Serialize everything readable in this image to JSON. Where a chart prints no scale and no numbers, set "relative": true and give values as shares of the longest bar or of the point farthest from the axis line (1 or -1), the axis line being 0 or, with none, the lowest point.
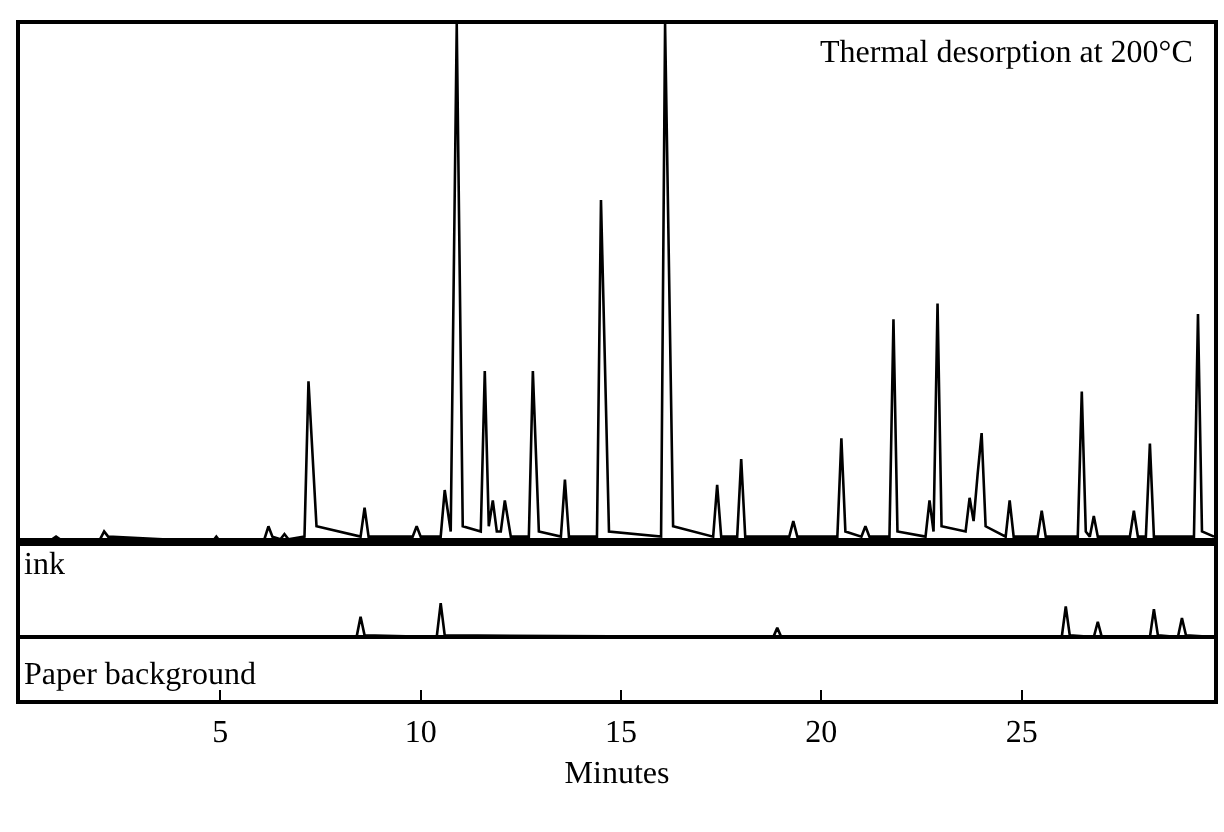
{
  "chart_data": [
    {
      "type": "line",
      "relative": true,
      "color": "#000000",
      "xlim": [
        0,
        29.8
      ],
      "tick_labels": false,
      "annotations": [
        "Thermal desorption at 200°C"
      ],
      "x": [
        0,
        0.8,
        0.9,
        1.0,
        2.0,
        2.1,
        2.2,
        4.8,
        4.9,
        5.0,
        6.1,
        6.2,
        6.3,
        6.5,
        6.6,
        6.7,
        7.1,
        7.2,
        7.4,
        8.5,
        8.6,
        8.7,
        9.8,
        9.9,
        10.0,
        10.5,
        10.6,
        10.75,
        10.9,
        11.05,
        11.5,
        11.6,
        11.7,
        11.8,
        11.9,
        12.0,
        12.1,
        12.25,
        12.7,
        12.8,
        12.95,
        13.5,
        13.6,
        13.7,
        14.4,
        14.5,
        14.7,
        16.0,
        16.1,
        16.3,
        17.3,
        17.4,
        17.5,
        17.9,
        18.0,
        18.1,
        19.2,
        19.3,
        19.4,
        20.4,
        20.5,
        20.6,
        21.0,
        21.1,
        21.2,
        21.7,
        21.8,
        21.9,
        22.6,
        22.7,
        22.8,
        22.9,
        23.0,
        23.6,
        23.7,
        23.8,
        23.9,
        24.0,
        24.1,
        24.6,
        24.7,
        24.8,
        25.4,
        25.5,
        25.6,
        26.4,
        26.5,
        26.6,
        26.7,
        26.8,
        26.9,
        27.7,
        27.8,
        27.9,
        28.1,
        28.2,
        28.3,
        29.3,
        29.4,
        29.5,
        29.8
      ],
      "values": [
        0,
        0.005,
        0.01,
        0.005,
        0.005,
        0.02,
        0.01,
        0,
        0.01,
        0,
        0.005,
        0.03,
        0.01,
        0.005,
        0.015,
        0.005,
        0.01,
        0.31,
        0.03,
        0.01,
        0.066,
        0.01,
        0.01,
        0.03,
        0.01,
        0.01,
        0.1,
        0.02,
        1,
        0.03,
        0.02,
        0.33,
        0.03,
        0.08,
        0.02,
        0.02,
        0.08,
        0.01,
        0.01,
        0.33,
        0.02,
        0.01,
        0.12,
        0.01,
        0.01,
        0.66,
        0.02,
        0.01,
        1,
        0.03,
        0.01,
        0.11,
        0.01,
        0.01,
        0.16,
        0.01,
        0.01,
        0.04,
        0.01,
        0.01,
        0.2,
        0.02,
        0.01,
        0.03,
        0.01,
        0.01,
        0.43,
        0.02,
        0.01,
        0.08,
        0.02,
        0.46,
        0.03,
        0.02,
        0.085,
        0.04,
        0.13,
        0.21,
        0.03,
        0.01,
        0.08,
        0.01,
        0.01,
        0.06,
        0.01,
        0.01,
        0.29,
        0.02,
        0.01,
        0.05,
        0.01,
        0.01,
        0.06,
        0.01,
        0.01,
        0.19,
        0.01,
        0.01,
        0.44,
        0.02,
        0.01
      ]
    },
    {
      "type": "line",
      "relative": true,
      "color": "#000000",
      "xlim": [
        0,
        29.8
      ],
      "xticks": [
        5,
        10,
        15,
        20,
        25
      ],
      "tick_labels": "x",
      "xlabel": "Minutes",
      "annotations": [
        "ink",
        "Paper background"
      ],
      "x": [
        0,
        8.4,
        8.5,
        8.6,
        10.4,
        10.5,
        10.6,
        18.8,
        18.9,
        19.0,
        26.0,
        26.1,
        26.2,
        26.8,
        26.9,
        27.0,
        28.2,
        28.3,
        28.4,
        28.9,
        29.0,
        29.1,
        29.8
      ],
      "values": [
        0,
        0,
        0.6,
        0.05,
        0,
        1,
        0.05,
        0,
        0.27,
        0,
        0,
        0.9,
        0.05,
        0,
        0.45,
        0,
        0,
        0.82,
        0.05,
        0,
        0.56,
        0.05,
        0
      ]
    }
  ]
}
